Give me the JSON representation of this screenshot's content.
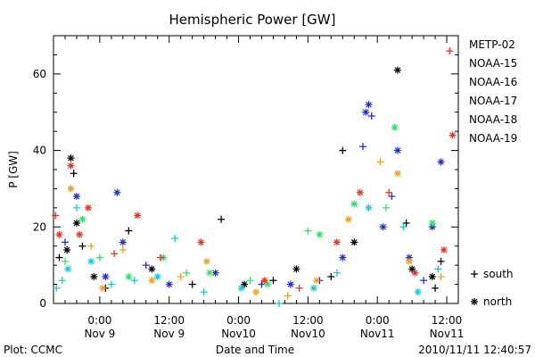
{
  "chart_data": {
    "type": "scatter",
    "title": "Hemispheric Power [GW]",
    "ylabel": "P [GW]",
    "xlabel": "Date and Time",
    "ylim": [
      0,
      70
    ],
    "yticks": [
      0,
      20,
      40,
      60
    ],
    "xlim": [
      "2010-11-08 16:00",
      "2010-11-11 14:00"
    ],
    "xticks": [
      {
        "time": "2010-11-09 00:00",
        "label1": "0:00",
        "label2": "Nov 9"
      },
      {
        "time": "2010-11-09 12:00",
        "label1": "12:00",
        "label2": "Nov 9"
      },
      {
        "time": "2010-11-10 00:00",
        "label1": "0:00",
        "label2": "Nov10"
      },
      {
        "time": "2010-11-10 12:00",
        "label1": "12:00",
        "label2": "Nov10"
      },
      {
        "time": "2010-11-11 00:00",
        "label1": "0:00",
        "label2": "Nov11"
      },
      {
        "time": "2010-11-11 12:00",
        "label1": "12:00",
        "label2": "Nov11"
      }
    ],
    "symbols": {
      "south": "+",
      "north": "*"
    },
    "legend_position": "right",
    "footer_left": "Plot: CCMC",
    "footer_right": "2010/11/11 12:40:57",
    "series": [
      {
        "name": "METP-02",
        "color": "#000000",
        "points": [
          {
            "t": "2010-11-08 17:00",
            "v": 12,
            "h": "south"
          },
          {
            "t": "2010-11-08 18:20",
            "v": 14,
            "h": "north"
          },
          {
            "t": "2010-11-08 19:00",
            "v": 38,
            "h": "north"
          },
          {
            "t": "2010-11-08 19:30",
            "v": 34,
            "h": "south"
          },
          {
            "t": "2010-11-08 20:00",
            "v": 21,
            "h": "north"
          },
          {
            "t": "2010-11-08 21:00",
            "v": 15,
            "h": "south"
          },
          {
            "t": "2010-11-08 23:00",
            "v": 7,
            "h": "north"
          },
          {
            "t": "2010-11-09 01:00",
            "v": 4,
            "h": "south"
          },
          {
            "t": "2010-11-09 05:00",
            "v": 19,
            "h": "south"
          },
          {
            "t": "2010-11-09 09:00",
            "v": 9,
            "h": "north"
          },
          {
            "t": "2010-11-09 16:00",
            "v": 5,
            "h": "south"
          },
          {
            "t": "2010-11-09 21:00",
            "v": 22,
            "h": "south"
          },
          {
            "t": "2010-11-10 01:00",
            "v": 5,
            "h": "north"
          },
          {
            "t": "2010-11-10 06:00",
            "v": 6,
            "h": "south"
          },
          {
            "t": "2010-11-10 10:00",
            "v": 9,
            "h": "north"
          },
          {
            "t": "2010-11-10 16:00",
            "v": 7,
            "h": "south"
          },
          {
            "t": "2010-11-10 18:00",
            "v": 40,
            "h": "south"
          },
          {
            "t": "2010-11-10 20:00",
            "v": 16,
            "h": "north"
          },
          {
            "t": "2010-11-11 03:30",
            "v": 61,
            "h": "north"
          },
          {
            "t": "2010-11-11 05:00",
            "v": 21,
            "h": "south"
          },
          {
            "t": "2010-11-11 06:00",
            "v": 9,
            "h": "north"
          },
          {
            "t": "2010-11-11 09:30",
            "v": 7,
            "h": "north"
          },
          {
            "t": "2010-11-11 10:00",
            "v": 4,
            "h": "south"
          },
          {
            "t": "2010-11-11 11:00",
            "v": 11,
            "h": "south"
          }
        ]
      },
      {
        "name": "NOAA-15",
        "color": "#1f2fd0",
        "points": [
          {
            "t": "2010-11-08 18:00",
            "v": 16,
            "h": "south"
          },
          {
            "t": "2010-11-08 20:00",
            "v": 28,
            "h": "north"
          },
          {
            "t": "2010-11-09 01:00",
            "v": 7,
            "h": "north"
          },
          {
            "t": "2010-11-09 03:00",
            "v": 29,
            "h": "north"
          },
          {
            "t": "2010-11-09 04:00",
            "v": 16,
            "h": "north"
          },
          {
            "t": "2010-11-09 08:00",
            "v": 10,
            "h": "south"
          },
          {
            "t": "2010-11-09 12:00",
            "v": 5,
            "h": "north"
          },
          {
            "t": "2010-11-09 20:00",
            "v": 8,
            "h": "north"
          },
          {
            "t": "2010-11-10 04:00",
            "v": 5,
            "h": "south"
          },
          {
            "t": "2010-11-10 09:00",
            "v": 5,
            "h": "north"
          },
          {
            "t": "2010-11-10 14:00",
            "v": 6,
            "h": "south"
          },
          {
            "t": "2010-11-10 18:00",
            "v": 12,
            "h": "north"
          },
          {
            "t": "2010-11-10 21:30",
            "v": 41,
            "h": "south"
          },
          {
            "t": "2010-11-10 22:00",
            "v": 50,
            "h": "north"
          },
          {
            "t": "2010-11-10 22:30",
            "v": 52,
            "h": "north"
          },
          {
            "t": "2010-11-10 23:00",
            "v": 49,
            "h": "south"
          },
          {
            "t": "2010-11-11 01:00",
            "v": 20,
            "h": "north"
          },
          {
            "t": "2010-11-11 02:30",
            "v": 28,
            "h": "south"
          },
          {
            "t": "2010-11-11 03:30",
            "v": 40,
            "h": "north"
          },
          {
            "t": "2010-11-11 05:30",
            "v": 12,
            "h": "north"
          },
          {
            "t": "2010-11-11 08:00",
            "v": 6,
            "h": "south"
          },
          {
            "t": "2010-11-11 09:30",
            "v": 20,
            "h": "north"
          },
          {
            "t": "2010-11-11 11:00",
            "v": 37,
            "h": "north"
          }
        ]
      },
      {
        "name": "NOAA-16",
        "color": "#16c8dc",
        "points": [
          {
            "t": "2010-11-08 16:30",
            "v": 4,
            "h": "south"
          },
          {
            "t": "2010-11-08 17:30",
            "v": 6,
            "h": "south"
          },
          {
            "t": "2010-11-08 18:30",
            "v": 9,
            "h": "north"
          },
          {
            "t": "2010-11-08 20:00",
            "v": 25,
            "h": "south"
          },
          {
            "t": "2010-11-08 22:30",
            "v": 11,
            "h": "north"
          },
          {
            "t": "2010-11-09 02:00",
            "v": 5,
            "h": "south"
          },
          {
            "t": "2010-11-09 06:00",
            "v": 6,
            "h": "south"
          },
          {
            "t": "2010-11-09 10:00",
            "v": 7,
            "h": "north"
          },
          {
            "t": "2010-11-09 13:00",
            "v": 17,
            "h": "south"
          },
          {
            "t": "2010-11-09 18:00",
            "v": 3,
            "h": "south"
          },
          {
            "t": "2010-11-10 00:30",
            "v": 4,
            "h": "north"
          },
          {
            "t": "2010-11-10 07:00",
            "v": 0,
            "h": "south"
          },
          {
            "t": "2010-11-10 13:00",
            "v": 4,
            "h": "north"
          },
          {
            "t": "2010-11-10 17:00",
            "v": 8,
            "h": "south"
          },
          {
            "t": "2010-11-10 22:30",
            "v": 25,
            "h": "north"
          },
          {
            "t": "2010-11-11 04:30",
            "v": 20,
            "h": "south"
          },
          {
            "t": "2010-11-11 07:00",
            "v": 3,
            "h": "north"
          },
          {
            "t": "2010-11-11 10:30",
            "v": 9,
            "h": "south"
          }
        ]
      },
      {
        "name": "NOAA-17",
        "color": "#30e068",
        "points": [
          {
            "t": "2010-11-08 18:00",
            "v": 11,
            "h": "south"
          },
          {
            "t": "2010-11-08 19:00",
            "v": 30,
            "h": "north"
          },
          {
            "t": "2010-11-08 21:00",
            "v": 22,
            "h": "north"
          },
          {
            "t": "2010-11-09 00:00",
            "v": 12,
            "h": "south"
          },
          {
            "t": "2010-11-09 05:00",
            "v": 7,
            "h": "north"
          },
          {
            "t": "2010-11-09 11:00",
            "v": 12,
            "h": "north"
          },
          {
            "t": "2010-11-09 15:00",
            "v": 8,
            "h": "south"
          },
          {
            "t": "2010-11-09 19:00",
            "v": 8,
            "h": "north"
          },
          {
            "t": "2010-11-10 02:00",
            "v": 6,
            "h": "south"
          },
          {
            "t": "2010-11-10 05:00",
            "v": 5,
            "h": "north"
          },
          {
            "t": "2010-11-10 12:00",
            "v": 19,
            "h": "south"
          },
          {
            "t": "2010-11-10 14:00",
            "v": 18,
            "h": "north"
          },
          {
            "t": "2010-11-10 20:00",
            "v": 26,
            "h": "north"
          },
          {
            "t": "2010-11-11 01:30",
            "v": 25,
            "h": "south"
          },
          {
            "t": "2010-11-11 03:00",
            "v": 46,
            "h": "north"
          },
          {
            "t": "2010-11-11 09:30",
            "v": 21,
            "h": "north"
          }
        ]
      },
      {
        "name": "NOAA-18",
        "color": "#f0a020",
        "points": [
          {
            "t": "2010-11-08 19:00",
            "v": 30,
            "h": "north"
          },
          {
            "t": "2010-11-08 22:30",
            "v": 15,
            "h": "south"
          },
          {
            "t": "2010-11-09 00:30",
            "v": 4,
            "h": "north"
          },
          {
            "t": "2010-11-09 04:00",
            "v": 14,
            "h": "south"
          },
          {
            "t": "2010-11-09 09:00",
            "v": 6,
            "h": "north"
          },
          {
            "t": "2010-11-09 14:00",
            "v": 7,
            "h": "south"
          },
          {
            "t": "2010-11-09 18:30",
            "v": 11,
            "h": "north"
          },
          {
            "t": "2010-11-10 03:00",
            "v": 3,
            "h": "north"
          },
          {
            "t": "2010-11-10 08:30",
            "v": 2,
            "h": "south"
          },
          {
            "t": "2010-11-10 13:30",
            "v": 6,
            "h": "north"
          },
          {
            "t": "2010-11-10 19:00",
            "v": 22,
            "h": "north"
          },
          {
            "t": "2010-11-11 00:30",
            "v": 37,
            "h": "south"
          },
          {
            "t": "2010-11-11 03:30",
            "v": 34,
            "h": "north"
          },
          {
            "t": "2010-11-11 05:30",
            "v": 11,
            "h": "north"
          },
          {
            "t": "2010-11-11 11:00",
            "v": 7,
            "h": "south"
          }
        ]
      },
      {
        "name": "NOAA-19",
        "color": "#e83020",
        "points": [
          {
            "t": "2010-11-08 16:20",
            "v": 23,
            "h": "south"
          },
          {
            "t": "2010-11-08 17:00",
            "v": 18,
            "h": "north"
          },
          {
            "t": "2010-11-08 19:00",
            "v": 36,
            "h": "north"
          },
          {
            "t": "2010-11-08 20:30",
            "v": 18,
            "h": "north"
          },
          {
            "t": "2010-11-08 22:00",
            "v": 25,
            "h": "north"
          },
          {
            "t": "2010-11-09 02:30",
            "v": 13,
            "h": "south"
          },
          {
            "t": "2010-11-09 06:30",
            "v": 23,
            "h": "north"
          },
          {
            "t": "2010-11-09 10:30",
            "v": 12,
            "h": "south"
          },
          {
            "t": "2010-11-09 17:30",
            "v": 16,
            "h": "north"
          },
          {
            "t": "2010-11-10 04:30",
            "v": 6,
            "h": "north"
          },
          {
            "t": "2010-11-10 10:30",
            "v": 4,
            "h": "south"
          },
          {
            "t": "2010-11-10 17:00",
            "v": 16,
            "h": "north"
          },
          {
            "t": "2010-11-10 21:00",
            "v": 29,
            "h": "north"
          },
          {
            "t": "2010-11-11 02:00",
            "v": 29,
            "h": "south"
          },
          {
            "t": "2010-11-11 06:30",
            "v": 8,
            "h": "north"
          },
          {
            "t": "2010-11-11 11:30",
            "v": 14,
            "h": "north"
          },
          {
            "t": "2010-11-11 12:30",
            "v": 66,
            "h": "south"
          },
          {
            "t": "2010-11-11 13:00",
            "v": 44,
            "h": "north"
          }
        ]
      }
    ]
  }
}
